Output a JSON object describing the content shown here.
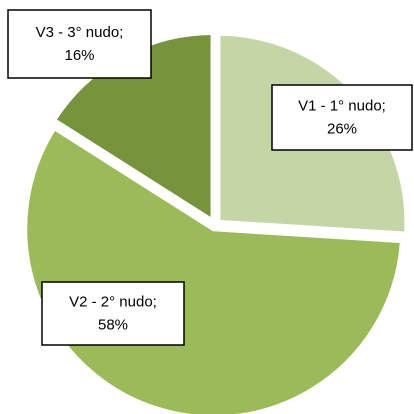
{
  "chart_data": {
    "type": "pie",
    "categories": [
      "V1 - 1° nudo;",
      "V2 - 2° nudo;",
      "V3 - 3° nudo;"
    ],
    "values": [
      26,
      58,
      16
    ],
    "value_labels": [
      "26%",
      "58%",
      "16%"
    ],
    "colors": [
      "#c4d6a6",
      "#9bbb59",
      "#77933c"
    ]
  }
}
